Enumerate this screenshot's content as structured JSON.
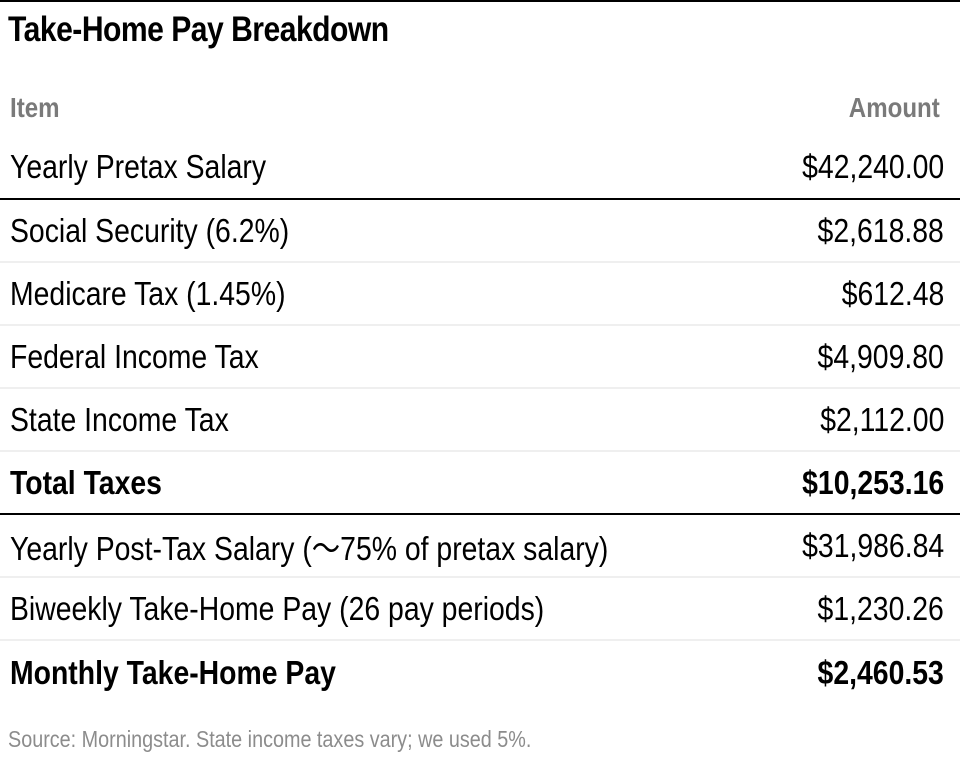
{
  "title": "Take-Home Pay Breakdown",
  "table": {
    "headers": {
      "item": "Item",
      "amount": "Amount"
    },
    "rows": [
      {
        "item": "Yearly Pretax Salary",
        "amount": "$42,240.00"
      },
      {
        "item": "Social Security (6.2%)",
        "amount": "$2,618.88"
      },
      {
        "item": "Medicare Tax (1.45%)",
        "amount": "$612.48"
      },
      {
        "item": "Federal Income Tax",
        "amount": "$4,909.80"
      },
      {
        "item": "State Income Tax",
        "amount": "$2,112.00"
      },
      {
        "item": "Total Taxes",
        "amount": "$10,253.16"
      },
      {
        "item": "Yearly Post-Tax Salary (～75% of pretax salary)",
        "amount": "$31,986.84"
      },
      {
        "item": "Biweekly Take-Home Pay (26 pay periods)",
        "amount": "$1,230.26"
      },
      {
        "item": "Monthly Take-Home Pay",
        "amount": "$2,460.53"
      }
    ]
  },
  "source": "Source: Morningstar. State income taxes vary; we used 5%."
}
